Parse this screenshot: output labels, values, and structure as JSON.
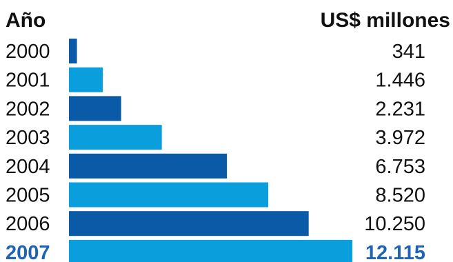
{
  "chart_data": {
    "type": "bar",
    "orientation": "horizontal",
    "column_headers": {
      "category": "Año",
      "value": "US$ millones"
    },
    "categories": [
      "2000",
      "2001",
      "2002",
      "2003",
      "2004",
      "2005",
      "2006",
      "2007"
    ],
    "values": [
      341,
      1446,
      2231,
      3972,
      6753,
      8520,
      10250,
      12115
    ],
    "value_labels": [
      "341",
      "1.446",
      "2.231",
      "3.972",
      "6.753",
      "8.520",
      "10.250",
      "12.115"
    ],
    "highlighted_category": "2007",
    "xlim": [
      0,
      12115
    ],
    "grid": false,
    "legend": "none"
  },
  "colors": {
    "bar_dark": "#0a5aa8",
    "bar_light": "#0a9fdc",
    "highlight_text": "#1e63b8",
    "text": "#111111"
  }
}
